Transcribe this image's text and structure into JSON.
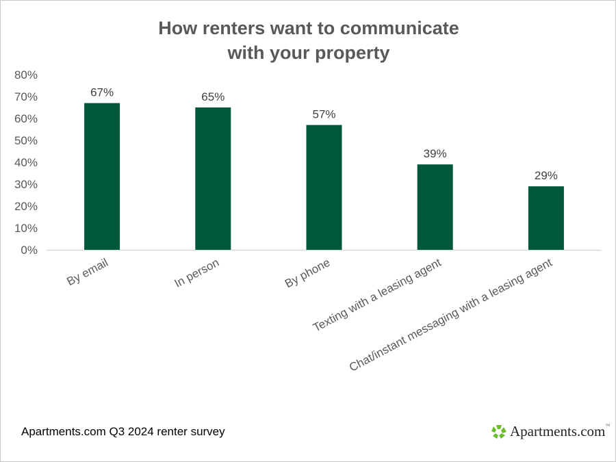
{
  "chart_data": {
    "type": "bar",
    "title_line1": "How renters want to communicate",
    "title_line2": "with your property",
    "categories": [
      "By email",
      "In person",
      "By phone",
      "Texting with a leasing agent",
      "Chat/instant messaging with a leasing agent"
    ],
    "values": [
      67,
      65,
      57,
      39,
      29
    ],
    "data_labels": [
      "67%",
      "65%",
      "57%",
      "39%",
      "29%"
    ],
    "ylim": [
      0,
      80
    ],
    "yticks": [
      "0%",
      "10%",
      "20%",
      "30%",
      "40%",
      "50%",
      "60%",
      "70%",
      "80%"
    ],
    "xlabel": "",
    "ylabel": "",
    "grid": false,
    "bar_color": "#02583b",
    "legend": "none"
  },
  "footer": {
    "source": "Apartments.com Q3 2024 renter survey",
    "logo_text": "Apartments.com",
    "logo_tm": "™"
  }
}
